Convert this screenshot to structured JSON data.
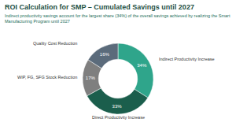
{
  "chart_data": {
    "type": "donut",
    "title": "ROI Calculation for SMP – Cumulated Savings until 2027",
    "subtitle": "Indirect productivity savings account for the largest share (34%) of the overall savings achieved by realizing the Smart Manufacturing Program until 2027",
    "categories": [
      "Indirect Productivity Increase",
      "Direct Productivity Increase",
      "WIP, FG, SFG Stock Reduction",
      "Quality Cost Reduction"
    ],
    "values": [
      34,
      33,
      17,
      16
    ],
    "value_labels": [
      "34%",
      "33%",
      "17%",
      "16%"
    ],
    "colors": [
      "#2fa58b",
      "#1b5e4c",
      "#7f7f7f",
      "#5b6b7b"
    ],
    "data_labels": true
  }
}
